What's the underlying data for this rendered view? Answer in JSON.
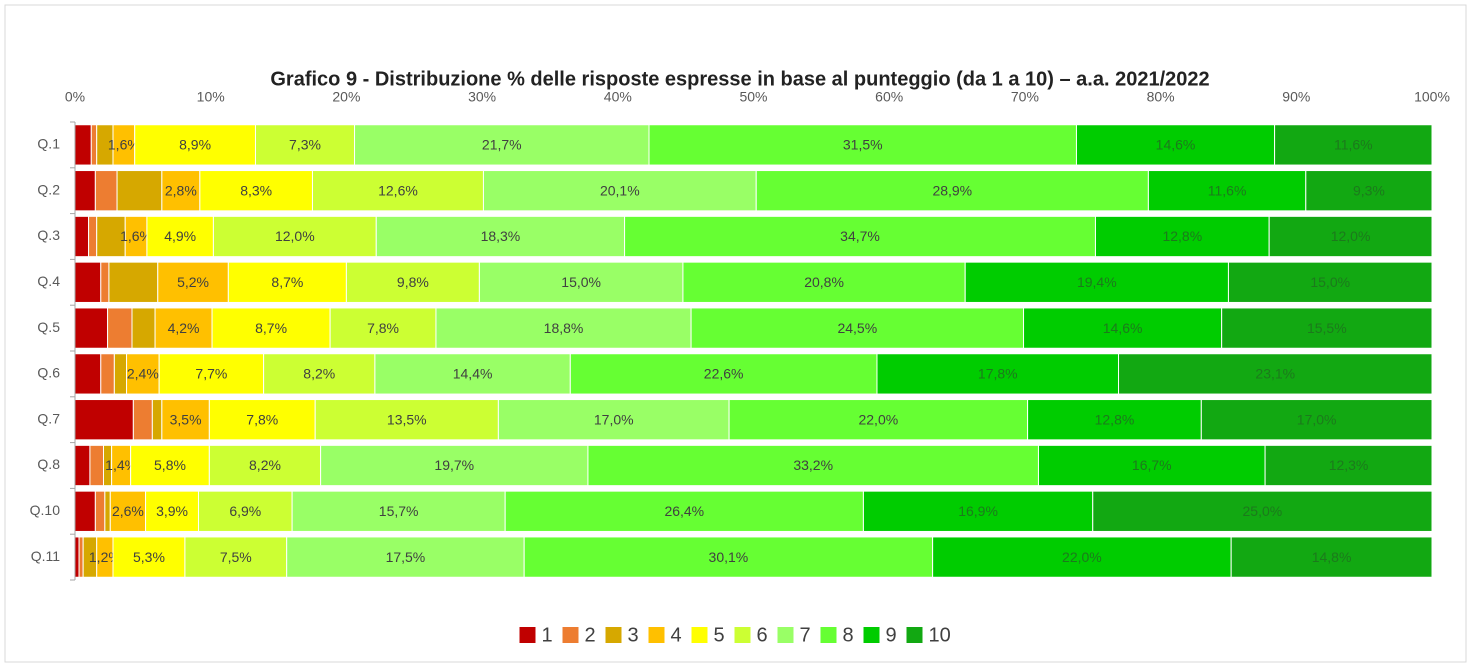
{
  "chart_data": {
    "type": "stacked-barh",
    "title": "Grafico 9 - Distribuzione % delle risposte espresse in base al punteggio (da 1 a 10) – a.a. 2021/2022",
    "categories": [
      "Q.1",
      "Q.2",
      "Q.3",
      "Q.4",
      "Q.5",
      "Q.6",
      "Q.7",
      "Q.8",
      "Q.10",
      "Q.11"
    ],
    "xlim": [
      0,
      100
    ],
    "xticks": [
      {
        "value": 0,
        "label": "0%"
      },
      {
        "value": 10,
        "label": "10%"
      },
      {
        "value": 20,
        "label": "20%"
      },
      {
        "value": 30,
        "label": "30%"
      },
      {
        "value": 40,
        "label": "40%"
      },
      {
        "value": 50,
        "label": "50%"
      },
      {
        "value": 60,
        "label": "60%"
      },
      {
        "value": 70,
        "label": "70%"
      },
      {
        "value": 80,
        "label": "80%"
      },
      {
        "value": 90,
        "label": "90%"
      },
      {
        "value": 100,
        "label": "100%"
      }
    ],
    "grid": false,
    "legend": "bottom",
    "series": [
      {
        "name": "1",
        "color": "#c00000",
        "values": [
          1.2,
          1.5,
          1.0,
          1.9,
          2.4,
          1.9,
          4.3,
          1.1,
          1.5,
          0.3
        ]
      },
      {
        "name": "2",
        "color": "#ed7d31",
        "values": [
          0.4,
          1.6,
          0.6,
          0.6,
          1.8,
          1.0,
          1.4,
          1.0,
          0.7,
          0.3
        ]
      },
      {
        "name": "3",
        "color": "#d6a800",
        "values": [
          1.2,
          3.3,
          2.1,
          3.6,
          1.7,
          0.9,
          0.7,
          0.6,
          0.4,
          1.0
        ]
      },
      {
        "name": "4",
        "color": "#ffc000",
        "values": [
          1.6,
          2.8,
          1.6,
          5.2,
          4.2,
          2.4,
          3.5,
          1.4,
          2.6,
          1.2
        ],
        "value_labels": [
          "1,6%",
          "2,8%",
          "1,6%",
          "5,2%",
          "4,2%",
          "2,4%",
          "3,5%",
          "1,4%",
          "2,6%",
          "1,2%"
        ]
      },
      {
        "name": "5",
        "color": "#ffff00",
        "values": [
          8.9,
          8.3,
          4.9,
          8.7,
          8.7,
          7.7,
          7.8,
          5.8,
          3.9,
          5.3
        ],
        "value_labels": [
          "8,9%",
          "8,3%",
          "4,9%",
          "8,7%",
          "8,7%",
          "7,7%",
          "7,8%",
          "5,8%",
          "3,9%",
          "5,3%"
        ]
      },
      {
        "name": "6",
        "color": "#ccff33",
        "values": [
          7.3,
          12.6,
          12.0,
          9.8,
          7.8,
          8.2,
          13.5,
          8.2,
          6.9,
          7.5
        ],
        "value_labels": [
          "7,3%",
          "12,6%",
          "12,0%",
          "9,8%",
          "7,8%",
          "8,2%",
          "13,5%",
          "8,2%",
          "6,9%",
          "7,5%"
        ]
      },
      {
        "name": "7",
        "color": "#99ff66",
        "values": [
          21.7,
          20.1,
          18.3,
          15.0,
          18.8,
          14.4,
          17.0,
          19.7,
          15.7,
          17.5
        ],
        "value_labels": [
          "21,7%",
          "20,1%",
          "18,3%",
          "15,0%",
          "18,8%",
          "14,4%",
          "17,0%",
          "19,7%",
          "15,7%",
          "17,5%"
        ]
      },
      {
        "name": "8",
        "color": "#66ff33",
        "values": [
          31.5,
          28.9,
          34.7,
          20.8,
          24.5,
          22.6,
          22.0,
          33.2,
          26.4,
          30.1
        ],
        "value_labels": [
          "31,5%",
          "28,9%",
          "34,7%",
          "20,8%",
          "24,5%",
          "22,6%",
          "22,0%",
          "33,2%",
          "26,4%",
          "30,1%"
        ]
      },
      {
        "name": "9",
        "color": "#00cc00",
        "values": [
          14.6,
          11.6,
          12.8,
          19.4,
          14.6,
          17.8,
          12.8,
          16.7,
          16.9,
          22.0
        ],
        "value_labels": [
          "14,6%",
          "11,6%",
          "12,8%",
          "19,4%",
          "14,6%",
          "17,8%",
          "12,8%",
          "16,7%",
          "16,9%",
          "22,0%"
        ]
      },
      {
        "name": "10",
        "color": "#12a812",
        "values": [
          11.6,
          9.3,
          12.0,
          15.0,
          15.5,
          23.1,
          17.0,
          12.3,
          25.0,
          14.8
        ],
        "value_labels": [
          "11,6%",
          "9,3%",
          "12,0%",
          "15,0%",
          "15,5%",
          "23,1%",
          "17,0%",
          "12,3%",
          "25,0%",
          "14,8%"
        ]
      }
    ]
  }
}
